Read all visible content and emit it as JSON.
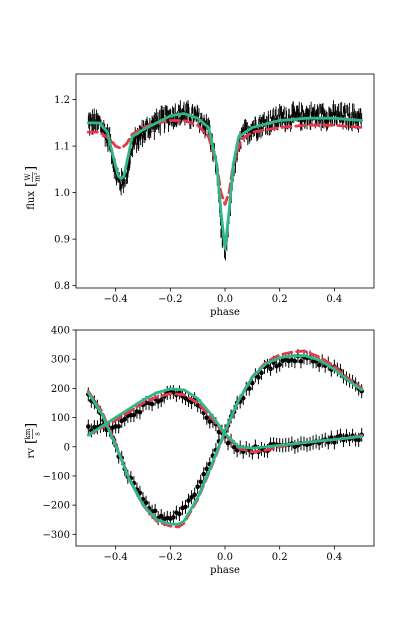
{
  "chart_data": [
    {
      "type": "line",
      "title": "",
      "xlabel": "phase",
      "ylabel": "flux",
      "ylabel_unit": {
        "num": "W",
        "den": "m²"
      },
      "xlim": [
        -0.545,
        0.545
      ],
      "ylim": [
        0.795,
        1.255
      ],
      "xticks": [
        -0.4,
        -0.2,
        0.0,
        0.2,
        0.4
      ],
      "xtick_labels": [
        "−0.4",
        "−0.2",
        "0.0",
        "0.2",
        "0.4"
      ],
      "yticks": [
        0.8,
        0.9,
        1.0,
        1.1,
        1.2
      ],
      "ytick_labels": [
        "0.8",
        "0.9",
        "1.0",
        "1.1",
        "1.2"
      ],
      "grid": false,
      "observations": {
        "name": "",
        "color": "#000000",
        "scatter": 0.018,
        "x": [
          -0.5,
          -0.46,
          -0.42,
          -0.4,
          -0.38,
          -0.36,
          -0.34,
          -0.3,
          -0.25,
          -0.2,
          -0.15,
          -0.1,
          -0.06,
          -0.03,
          -0.015,
          0.0,
          0.015,
          0.03,
          0.06,
          0.1,
          0.2,
          0.3,
          0.4,
          0.5
        ],
        "y": [
          1.15,
          1.15,
          1.11,
          1.04,
          1.02,
          1.04,
          1.1,
          1.13,
          1.15,
          1.165,
          1.17,
          1.16,
          1.14,
          1.05,
          0.93,
          0.86,
          0.94,
          1.05,
          1.12,
          1.14,
          1.16,
          1.165,
          1.165,
          1.16
        ]
      },
      "series": [
        {
          "name": "",
          "color": "#e8364a",
          "dash": "dashed",
          "x": [
            -0.5,
            -0.46,
            -0.42,
            -0.4,
            -0.38,
            -0.36,
            -0.34,
            -0.3,
            -0.25,
            -0.2,
            -0.15,
            -0.1,
            -0.06,
            -0.03,
            -0.015,
            0.0,
            0.015,
            0.03,
            0.06,
            0.1,
            0.2,
            0.3,
            0.4,
            0.5
          ],
          "y": [
            1.13,
            1.13,
            1.115,
            1.1,
            1.095,
            1.105,
            1.125,
            1.14,
            1.15,
            1.155,
            1.155,
            1.145,
            1.12,
            1.06,
            1.0,
            0.975,
            1.0,
            1.06,
            1.115,
            1.13,
            1.14,
            1.145,
            1.145,
            1.14
          ]
        },
        {
          "name": "",
          "color": "#2fb887",
          "dash": "solid",
          "x": [
            -0.5,
            -0.46,
            -0.43,
            -0.41,
            -0.39,
            -0.38,
            -0.37,
            -0.35,
            -0.34,
            -0.3,
            -0.25,
            -0.2,
            -0.15,
            -0.1,
            -0.06,
            -0.03,
            -0.015,
            0.0,
            0.015,
            0.03,
            0.05,
            0.1,
            0.2,
            0.3,
            0.4,
            0.5
          ],
          "y": [
            1.15,
            1.15,
            1.13,
            1.08,
            1.035,
            1.03,
            1.035,
            1.09,
            1.12,
            1.135,
            1.15,
            1.165,
            1.17,
            1.16,
            1.14,
            1.06,
            0.96,
            0.88,
            0.96,
            1.06,
            1.12,
            1.14,
            1.155,
            1.16,
            1.16,
            1.155
          ]
        }
      ]
    },
    {
      "type": "line",
      "title": "",
      "xlabel": "phase",
      "ylabel": "rv",
      "ylabel_unit": {
        "num": "km",
        "den": "s"
      },
      "xlim": [
        -0.545,
        0.545
      ],
      "ylim": [
        -340,
        400
      ],
      "xticks": [
        -0.4,
        -0.2,
        0.0,
        0.2,
        0.4
      ],
      "xtick_labels": [
        "−0.4",
        "−0.2",
        "0.0",
        "0.2",
        "0.4"
      ],
      "yticks": [
        -300,
        -200,
        -100,
        0,
        100,
        200,
        300,
        400
      ],
      "ytick_labels": [
        "−300",
        "−200",
        "−100",
        "0",
        "100",
        "200",
        "300",
        "400"
      ],
      "grid": false,
      "observations": [
        {
          "name": "",
          "color": "#000000",
          "x": [
            -0.5,
            -0.45,
            -0.4,
            -0.35,
            -0.3,
            -0.25,
            -0.2,
            -0.15,
            -0.1,
            -0.05,
            0.0,
            0.05,
            0.1,
            0.15,
            0.2,
            0.25,
            0.3,
            0.35,
            0.4,
            0.45,
            0.5
          ],
          "y": [
            60,
            65,
            65,
            105,
            135,
            160,
            180,
            180,
            150,
            90,
            30,
            -5,
            -10,
            -5,
            5,
            10,
            15,
            20,
            25,
            30,
            35
          ]
        },
        {
          "name": "",
          "color": "#000000",
          "x": [
            -0.5,
            -0.45,
            -0.4,
            -0.35,
            -0.3,
            -0.25,
            -0.2,
            -0.15,
            -0.1,
            -0.05,
            0.0,
            0.05,
            0.1,
            0.15,
            0.2,
            0.25,
            0.3,
            0.35,
            0.4,
            0.45,
            0.5
          ],
          "y": [
            170,
            110,
            0,
            -110,
            -185,
            -235,
            -245,
            -210,
            -140,
            -40,
            60,
            150,
            225,
            270,
            290,
            300,
            300,
            290,
            270,
            230,
            185
          ]
        }
      ],
      "series": [
        {
          "name": "",
          "color": "#e8364a",
          "dash": "dashed",
          "x": [
            -0.5,
            -0.45,
            -0.4,
            -0.35,
            -0.3,
            -0.25,
            -0.2,
            -0.17,
            -0.15,
            -0.1,
            -0.05,
            0.0,
            0.05,
            0.1,
            0.15,
            0.2,
            0.25,
            0.29,
            0.3,
            0.35,
            0.4,
            0.45,
            0.5
          ],
          "y": [
            190,
            120,
            10,
            -110,
            -200,
            -255,
            -272,
            -275,
            -262,
            -180,
            -70,
            50,
            160,
            240,
            290,
            315,
            325,
            328,
            325,
            305,
            275,
            235,
            200
          ]
        },
        {
          "name": "",
          "color": "#e8364a",
          "dash": "dashed",
          "x": [
            -0.5,
            -0.45,
            -0.4,
            -0.35,
            -0.3,
            -0.25,
            -0.2,
            -0.15,
            -0.1,
            -0.05,
            0.0,
            0.05,
            0.1,
            0.15,
            0.2,
            0.25,
            0.3,
            0.35,
            0.4,
            0.45,
            0.5
          ],
          "y": [
            40,
            65,
            90,
            120,
            150,
            170,
            182,
            178,
            150,
            100,
            40,
            -5,
            -18,
            -12,
            0,
            10,
            15,
            20,
            25,
            30,
            40
          ]
        },
        {
          "name": "",
          "color": "#2fb887",
          "dash": "solid",
          "x": [
            -0.5,
            -0.45,
            -0.4,
            -0.35,
            -0.3,
            -0.25,
            -0.2,
            -0.17,
            -0.15,
            -0.1,
            -0.05,
            0.0,
            0.05,
            0.1,
            0.15,
            0.2,
            0.25,
            0.29,
            0.3,
            0.35,
            0.4,
            0.45,
            0.5
          ],
          "y": [
            185,
            112,
            5,
            -112,
            -198,
            -250,
            -265,
            -265,
            -255,
            -175,
            -65,
            55,
            160,
            238,
            285,
            305,
            312,
            312,
            310,
            295,
            265,
            228,
            195
          ]
        },
        {
          "name": "",
          "color": "#2fb887",
          "dash": "solid",
          "x": [
            -0.5,
            -0.45,
            -0.4,
            -0.35,
            -0.3,
            -0.25,
            -0.2,
            -0.15,
            -0.1,
            -0.05,
            0.0,
            0.05,
            0.1,
            0.15,
            0.2,
            0.25,
            0.3,
            0.35,
            0.4,
            0.45,
            0.5
          ],
          "y": [
            40,
            70,
            100,
            130,
            160,
            185,
            198,
            195,
            165,
            110,
            45,
            0,
            -5,
            0,
            5,
            10,
            15,
            20,
            25,
            30,
            35
          ]
        }
      ]
    }
  ]
}
